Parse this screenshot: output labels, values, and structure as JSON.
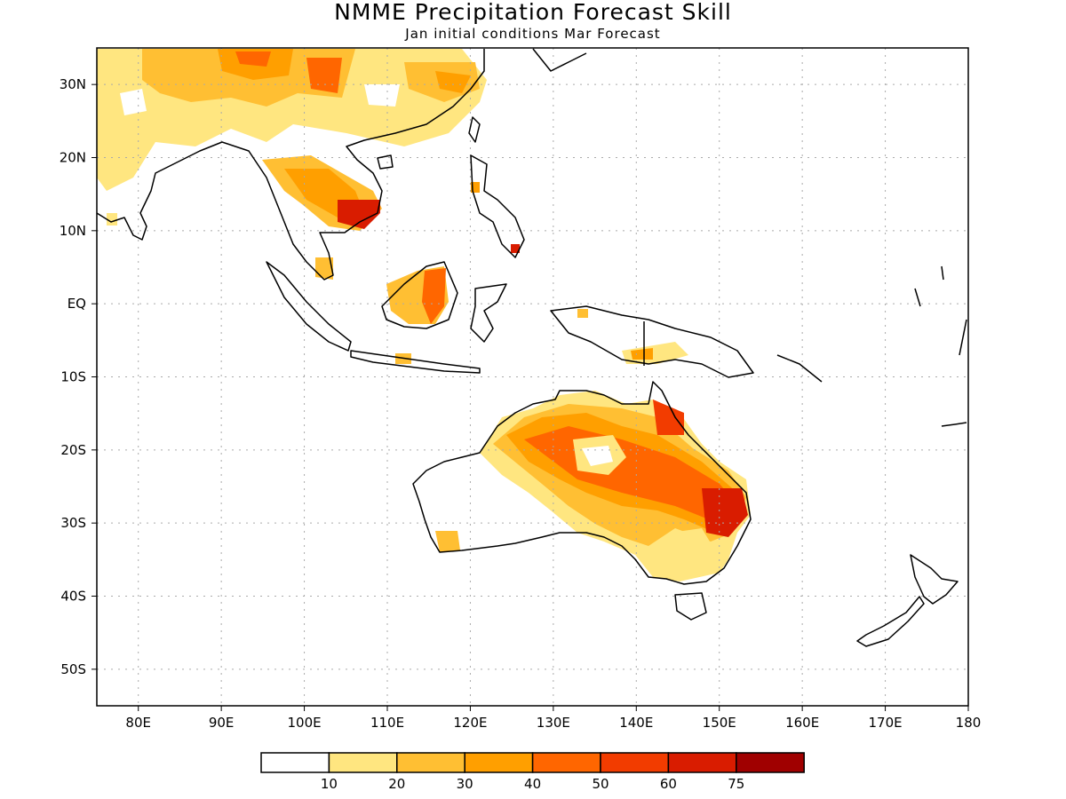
{
  "title": "NMME Precipitation Forecast Skill",
  "subtitle": "Jan initial conditions  Mar Forecast",
  "lat_ticks": [
    {
      "label": "30N",
      "value": 30
    },
    {
      "label": "20N",
      "value": 20
    },
    {
      "label": "10N",
      "value": 10
    },
    {
      "label": "EQ",
      "value": 0
    },
    {
      "label": "10S",
      "value": -10
    },
    {
      "label": "20S",
      "value": -20
    },
    {
      "label": "30S",
      "value": -30
    },
    {
      "label": "40S",
      "value": -40
    },
    {
      "label": "50S",
      "value": -50
    }
  ],
  "lon_ticks": [
    {
      "label": "80E",
      "value": 80
    },
    {
      "label": "90E",
      "value": 90
    },
    {
      "label": "100E",
      "value": 100
    },
    {
      "label": "110E",
      "value": 110
    },
    {
      "label": "120E",
      "value": 120
    },
    {
      "label": "130E",
      "value": 130
    },
    {
      "label": "140E",
      "value": 140
    },
    {
      "label": "150E",
      "value": 150
    },
    {
      "label": "160E",
      "value": 160
    },
    {
      "label": "170E",
      "value": 170
    },
    {
      "label": "180",
      "value": 180
    }
  ],
  "map_extent": {
    "lon": [
      75,
      180
    ],
    "lat": [
      -55,
      35
    ]
  },
  "colorbar": {
    "colors": [
      "#ffffff",
      "#ffe680",
      "#ffbf33",
      "#ff9f00",
      "#ff6600",
      "#f23c00",
      "#d91c00",
      "#a00000"
    ],
    "labels": [
      "10",
      "20",
      "30",
      "40",
      "50",
      "60",
      "75"
    ]
  },
  "colors": {
    "land_outline": "#000000",
    "grid": "#aaaaaa"
  }
}
